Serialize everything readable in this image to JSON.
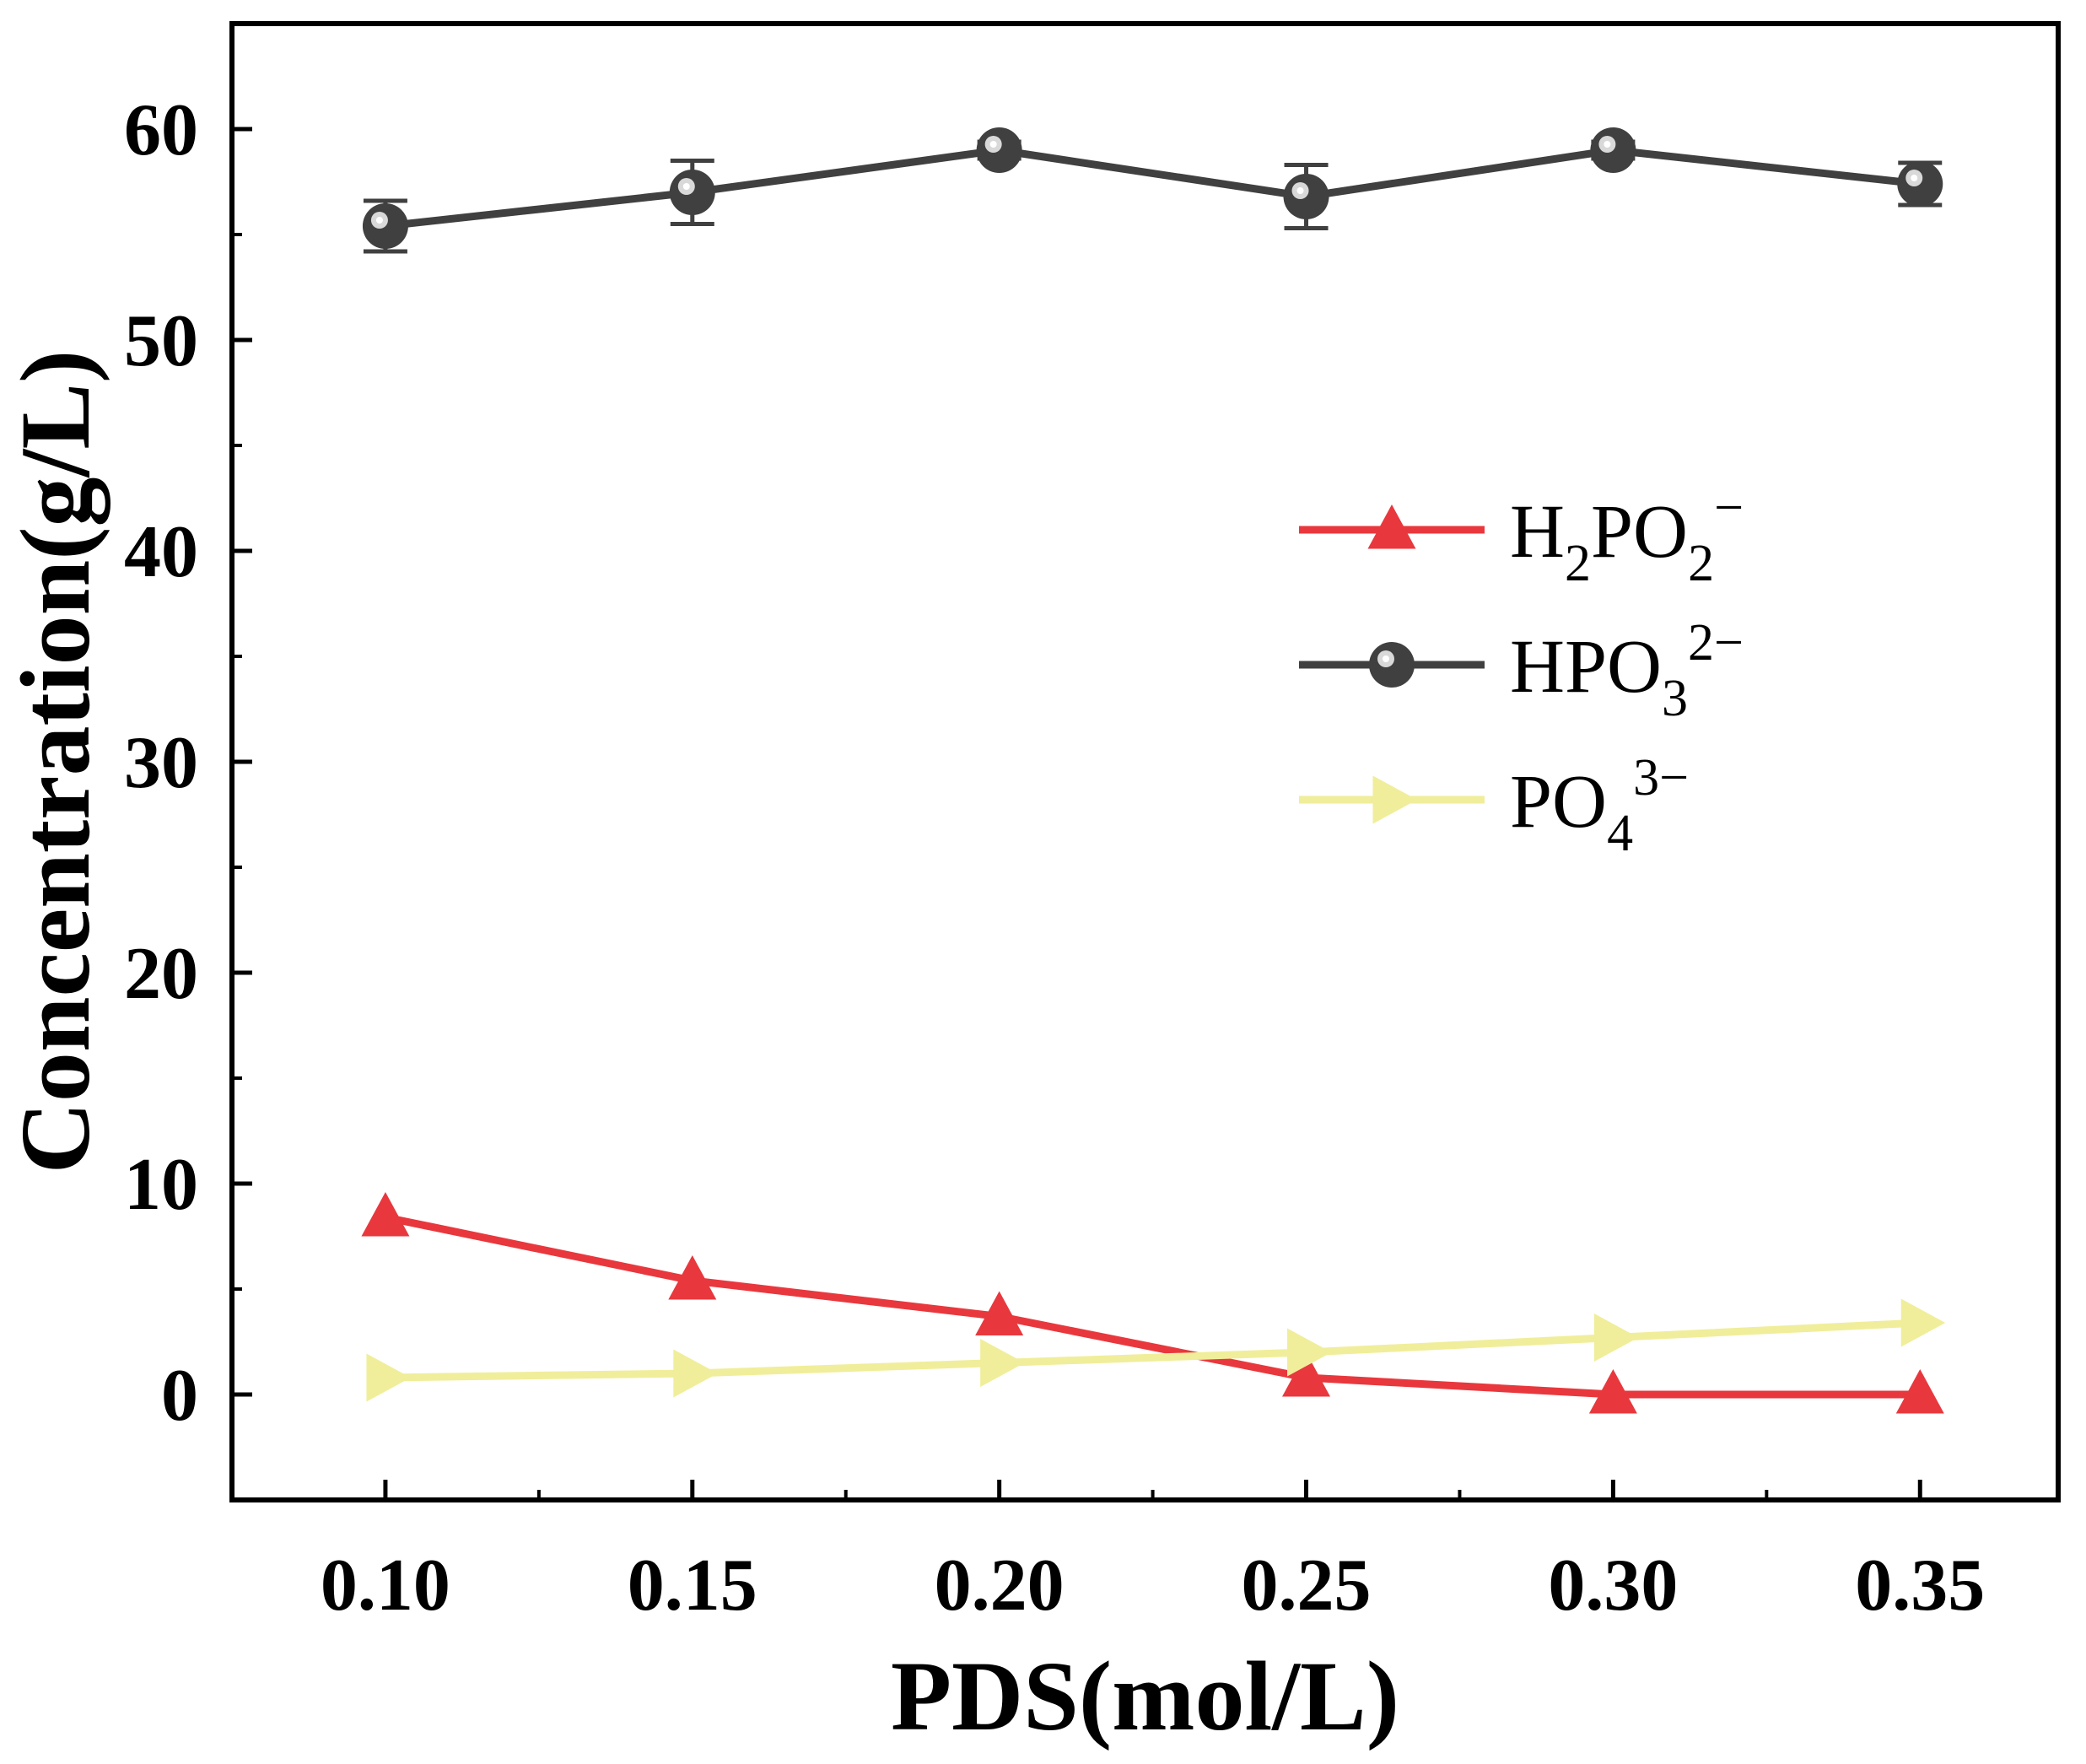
{
  "chart_data": {
    "type": "line",
    "title": "",
    "xlabel": "PDS(mol/L)",
    "ylabel": "Concentration(g/L)",
    "xlim": [
      0.075,
      0.3725
    ],
    "ylim": [
      -5,
      65
    ],
    "xticks": [
      0.1,
      0.15,
      0.2,
      0.25,
      0.3,
      0.35
    ],
    "xtick_labels": [
      "0.10",
      "0.15",
      "0.20",
      "0.25",
      "0.30",
      "0.35"
    ],
    "yticks": [
      0,
      10,
      20,
      30,
      40,
      50,
      60
    ],
    "ytick_labels": [
      "0",
      "10",
      "20",
      "30",
      "40",
      "50",
      "60"
    ],
    "grid": false,
    "legend_position": "center-right",
    "x": [
      0.1,
      0.15,
      0.2,
      0.25,
      0.3,
      0.35
    ],
    "series": [
      {
        "name": "H2PO2−",
        "legend_base": "H",
        "legend_sub1": "2",
        "legend_mid": "PO",
        "legend_sub2": "2",
        "legend_sup": "−",
        "color": "#e8383d",
        "marker": "triangle-up",
        "values": [
          8.4,
          5.4,
          3.7,
          0.8,
          0.0,
          0.0
        ],
        "errors": [
          0,
          0,
          0,
          0,
          0,
          0
        ]
      },
      {
        "name": "HPO32−",
        "legend_base": "HPO",
        "legend_sub1": "3",
        "legend_mid": "",
        "legend_sub2": "",
        "legend_sup": "2−",
        "color": "#404040",
        "marker": "circle",
        "values": [
          55.4,
          57.0,
          59.0,
          56.8,
          59.0,
          57.4
        ],
        "errors": [
          1.2,
          1.5,
          0.4,
          1.5,
          0.4,
          1.0
        ]
      },
      {
        "name": "PO43−",
        "legend_base": "PO",
        "legend_sub1": "4",
        "legend_mid": "",
        "legend_sub2": "",
        "legend_sup": "3−",
        "color": "#f0ee9a",
        "marker": "triangle-right",
        "values": [
          0.8,
          1.0,
          1.5,
          2.0,
          2.7,
          3.4
        ],
        "errors": [
          0,
          0,
          0,
          0,
          0,
          0
        ]
      }
    ]
  }
}
